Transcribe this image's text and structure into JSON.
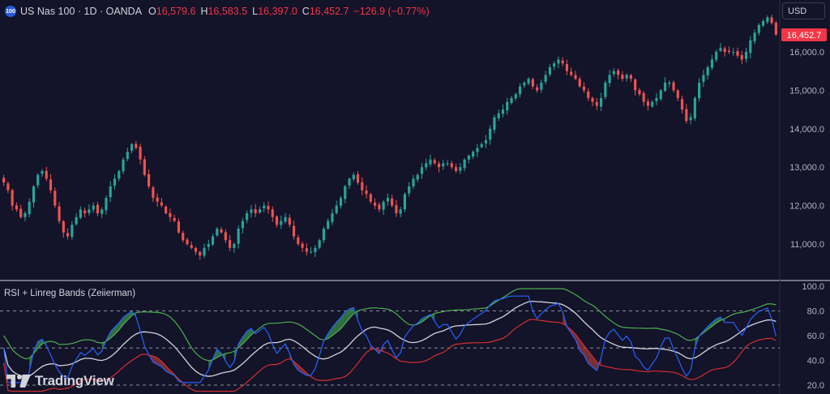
{
  "header": {
    "symbol_icon": "100",
    "symbol_name": "US Nas 100 · 1D · OANDA",
    "ohlc": [
      {
        "label": "O",
        "value": "16,579.6"
      },
      {
        "label": "H",
        "value": "16,583.5"
      },
      {
        "label": "L",
        "value": "16,397.0"
      },
      {
        "label": "C",
        "value": "16,452.7"
      }
    ],
    "change": "−126.9 (−0.77%)"
  },
  "currency_button": "USD",
  "price_axis": {
    "ticks": [
      "16,000.0",
      "15,000.0",
      "14,000.0",
      "13,000.0",
      "12,000.0",
      "11,000.0"
    ],
    "last_price": "16,452.7"
  },
  "indicator": {
    "title": "RSI + Linreg Bands (Zeiierman)",
    "ticks": [
      "100.0",
      "80.0",
      "60.0",
      "40.0",
      "20.0"
    ]
  },
  "logo_text": "TradingView",
  "colors": {
    "background": "#131329",
    "up": "#26a69a",
    "down": "#ef5350",
    "rsi_line": "#2962ff",
    "upper_band": "#4caf50",
    "mid_band": "#d1d4dc",
    "lower_band": "#d32f2f",
    "label_bg": "#f23645"
  },
  "chart_data": {
    "type": "candlestick",
    "price_range": [
      10300,
      16950
    ],
    "closes": [
      12600,
      12400,
      12000,
      11900,
      11700,
      11800,
      12100,
      12500,
      12800,
      12900,
      12700,
      12400,
      12000,
      11600,
      11300,
      11200,
      11500,
      11700,
      11900,
      11800,
      11900,
      12000,
      11800,
      11900,
      12200,
      12500,
      12700,
      12900,
      13200,
      13400,
      13600,
      13500,
      13200,
      12800,
      12500,
      12200,
      12100,
      12000,
      11800,
      11700,
      11600,
      11300,
      11100,
      11000,
      10900,
      10800,
      10700,
      10900,
      11000,
      11200,
      11400,
      11300,
      11100,
      10900,
      11000,
      11400,
      11600,
      11800,
      11900,
      11800,
      11900,
      12000,
      11900,
      11700,
      11500,
      11600,
      11700,
      11500,
      11200,
      11000,
      10900,
      10800,
      10800,
      10900,
      11100,
      11400,
      11600,
      11800,
      12000,
      12200,
      12500,
      12700,
      12800,
      12600,
      12400,
      12300,
      12100,
      12000,
      11900,
      12100,
      12200,
      12000,
      11800,
      11900,
      12300,
      12500,
      12700,
      12800,
      13000,
      13100,
      13200,
      13100,
      13000,
      13100,
      13100,
      13000,
      12900,
      13000,
      13200,
      13300,
      13400,
      13500,
      13600,
      13700,
      14000,
      14300,
      14400,
      14500,
      14700,
      14800,
      14900,
      15100,
      15200,
      15300,
      15100,
      15000,
      15200,
      15400,
      15600,
      15700,
      15800,
      15700,
      15500,
      15400,
      15300,
      15100,
      15000,
      14800,
      14700,
      14600,
      14800,
      15200,
      15400,
      15500,
      15400,
      15300,
      15400,
      15300,
      15000,
      14900,
      14700,
      14600,
      14700,
      14800,
      15000,
      15200,
      15200,
      15000,
      14800,
      14500,
      14200,
      14300,
      14800,
      15200,
      15400,
      15600,
      15800,
      16000,
      16100,
      16000,
      16000,
      16000,
      15900,
      15800,
      16000,
      16300,
      16500,
      16700,
      16800,
      16900,
      16750,
      16450
    ],
    "rsi_range": [
      20,
      100
    ],
    "rsi_levels": [
      80,
      50,
      20
    ]
  }
}
